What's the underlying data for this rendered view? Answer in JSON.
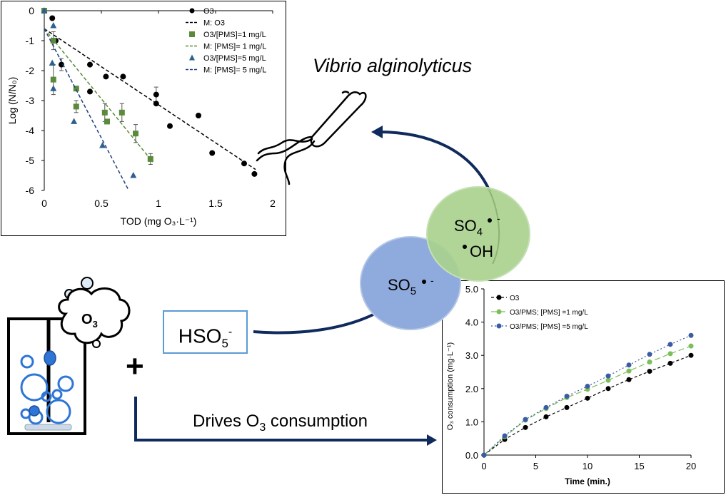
{
  "chart_data": [
    {
      "type": "scatter",
      "xlabel": "TOD (mg O₃·L⁻¹)",
      "ylabel": "Log (N/N₀)",
      "xlim": [
        0,
        2
      ],
      "ylim": [
        -6,
        0
      ],
      "xticks": [
        "0",
        "0.5",
        "1",
        "1.5",
        "2"
      ],
      "yticks": [
        "0",
        "-1",
        "-2",
        "-3",
        "-4",
        "-5",
        "-6"
      ],
      "grid": false,
      "legend_position": "top-right",
      "series": [
        {
          "name": "O3",
          "marker": "circle",
          "color": "#000000",
          "points": [
            [
              0,
              0
            ],
            [
              0.07,
              -0.25
            ],
            [
              0.1,
              -1.0
            ],
            [
              0.15,
              -1.8
            ],
            [
              0.4,
              -1.8
            ],
            [
              0.4,
              -2.7
            ],
            [
              0.54,
              -2.2
            ],
            [
              0.69,
              -2.2
            ],
            [
              0.98,
              -2.8
            ],
            [
              0.98,
              -3.1
            ],
            [
              1.1,
              -3.85
            ],
            [
              1.35,
              -3.5
            ],
            [
              1.47,
              -4.75
            ],
            [
              1.75,
              -5.1
            ],
            [
              1.84,
              -5.45
            ]
          ]
        },
        {
          "name": "M: O3",
          "line": "dashed",
          "color": "#000000",
          "points": [
            [
              0,
              -0.6
            ],
            [
              1.85,
              -5.3
            ]
          ]
        },
        {
          "name": "O3/[PMS]=1 mg/L",
          "marker": "square",
          "color": "#5a8a3a",
          "points": [
            [
              0,
              0
            ],
            [
              0.08,
              -1.0
            ],
            [
              0.08,
              -2.3
            ],
            [
              0.28,
              -2.6
            ],
            [
              0.28,
              -3.2
            ],
            [
              0.53,
              -3.4
            ],
            [
              0.55,
              -3.7
            ],
            [
              0.68,
              -3.4
            ],
            [
              0.8,
              -4.1
            ],
            [
              0.93,
              -4.95
            ]
          ]
        },
        {
          "name": "M: [PMS]= 1 mg/L",
          "line": "dashed",
          "color": "#5a8a3a",
          "points": [
            [
              0,
              -0.6
            ],
            [
              0.95,
              -5.05
            ]
          ]
        },
        {
          "name": "O3/[PMS]=5 mg/L",
          "marker": "triangle",
          "color": "#2e5f8f",
          "points": [
            [
              0,
              0
            ],
            [
              0.08,
              -0.5
            ],
            [
              0.07,
              -1.75
            ],
            [
              0.08,
              -2.6
            ],
            [
              0.26,
              -3.7
            ],
            [
              0.51,
              -4.5
            ],
            [
              0.78,
              -5.5
            ]
          ]
        },
        {
          "name": "M: [PMS]= 5 mg/L",
          "line": "dashed",
          "color": "#1f3f7a",
          "points": [
            [
              0,
              -0.6
            ],
            [
              0.74,
              -6.0
            ]
          ]
        }
      ],
      "error_bars": [
        [
          0.98,
          -2.8,
          0.25
        ],
        [
          0.93,
          -4.95,
          0.18
        ],
        [
          0.8,
          -4.1,
          0.3
        ],
        [
          0.68,
          -3.4,
          0.3
        ],
        [
          0.53,
          -3.4,
          0.3
        ],
        [
          0.28,
          -3.2,
          0.2
        ],
        [
          0.08,
          -2.3,
          0.5
        ],
        [
          0.08,
          -1.0,
          0.3
        ],
        [
          0.15,
          -1.8,
          0.2
        ]
      ]
    },
    {
      "type": "line",
      "xlabel": "Time (min.)",
      "ylabel": "O₃ consumption (mg·L⁻¹)",
      "xlim": [
        0,
        20
      ],
      "ylim": [
        0,
        5
      ],
      "xticks": [
        "0",
        "5",
        "10",
        "15",
        "20"
      ],
      "yticks": [
        "0.0",
        "1.0",
        "2.0",
        "3.0",
        "4.0",
        "5.0"
      ],
      "grid": false,
      "legend_position": "top-left",
      "x": [
        0,
        2,
        4,
        6,
        8,
        10,
        12,
        14,
        16,
        18,
        20
      ],
      "series": [
        {
          "name": "O3",
          "color": "#000000",
          "dash": "4 3",
          "values": [
            0,
            0.47,
            0.83,
            1.15,
            1.43,
            1.71,
            2.0,
            2.27,
            2.52,
            2.76,
            3.0
          ]
        },
        {
          "name": "O3/PMS; [PMS] =1 mg/L",
          "color": "#7cbf58",
          "dash": "8 4",
          "values": [
            0,
            0.55,
            1.05,
            1.4,
            1.73,
            1.98,
            2.25,
            2.53,
            2.8,
            3.05,
            3.28
          ]
        },
        {
          "name": "O3/PMS; [PMS] =5 mg/L",
          "color": "#3b5ba5",
          "dash": "2 3",
          "values": [
            0,
            0.58,
            1.07,
            1.43,
            1.77,
            2.07,
            2.38,
            2.71,
            3.03,
            3.33,
            3.6
          ]
        }
      ]
    }
  ],
  "labels": {
    "organism": "Vibrio alginolyticus",
    "hso5": "HSO",
    "hso5_sub": "5",
    "hso5_sup": "-",
    "drives_pre": "Drives O",
    "drives_sub": "3",
    "drives_post": " consumption",
    "so4": "SO",
    "so4_sub": "4",
    "so4_sup": "-",
    "oh": "OH",
    "so5": "SO",
    "so5_sub": "5",
    "so5_sup": "-",
    "o3_bubble": "O",
    "o3_bubble_sub": "3",
    "plus": "+"
  },
  "colors": {
    "arrow": "#0f2a5c",
    "green_circle": "#a9d18e",
    "blue_circle": "#8faadc",
    "hso5_border": "#5b9bd5",
    "bubble_blue": "#2e75d6"
  },
  "icons": [
    "bacterium-icon",
    "ozone-cloud-icon",
    "beaker-icon"
  ]
}
